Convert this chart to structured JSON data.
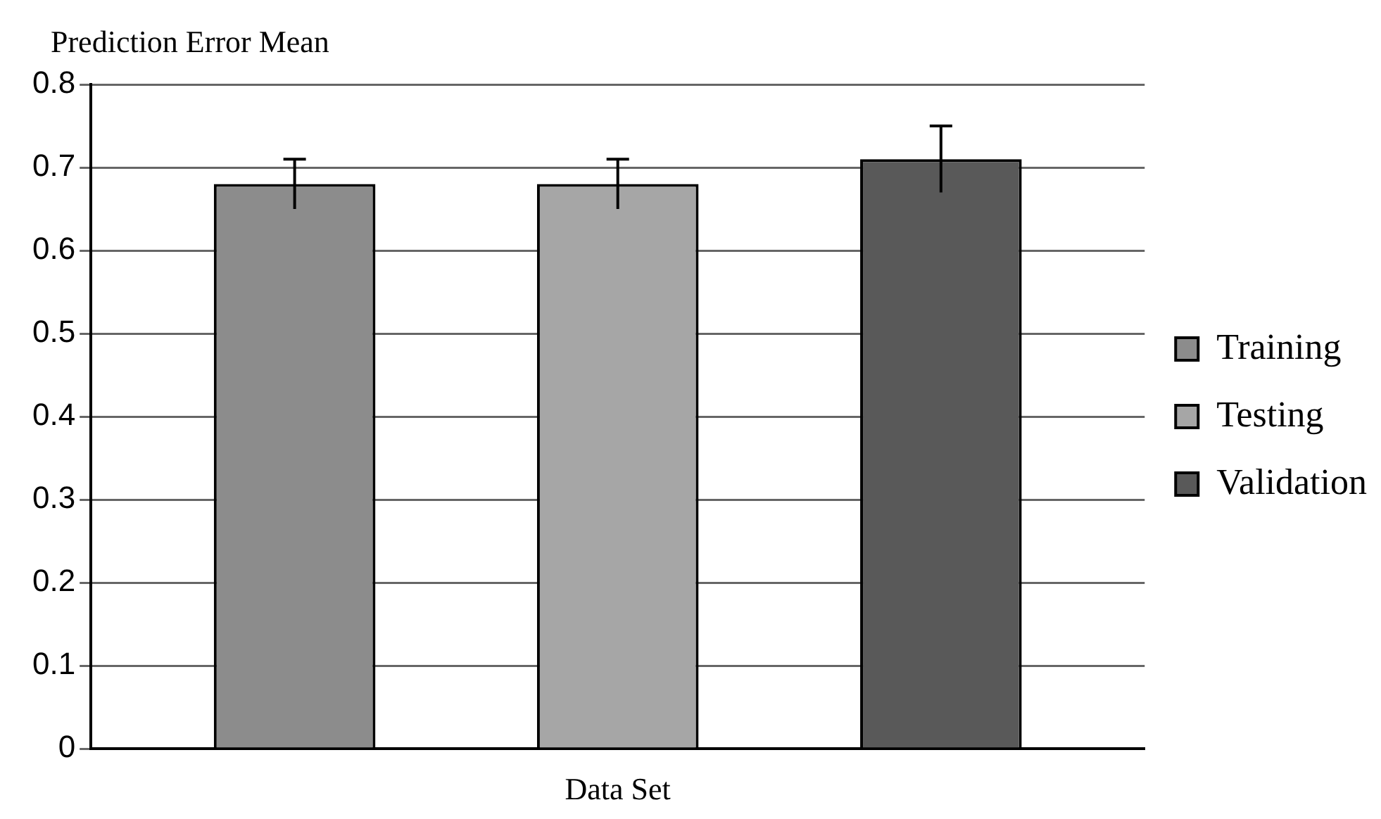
{
  "chart_data": {
    "type": "bar",
    "title": "Prediction Error Mean",
    "xlabel": "Data Set",
    "categories": [
      null
    ],
    "series": [
      {
        "name": "Training",
        "color": "#8c8c8c",
        "values": [
          0.68
        ],
        "errors": [
          0.03
        ]
      },
      {
        "name": "Testing",
        "color": "#a6a6a6",
        "values": [
          0.68
        ],
        "errors": [
          0.03
        ]
      },
      {
        "name": "Validation",
        "color": "#595959",
        "values": [
          0.71
        ],
        "errors": [
          0.04
        ]
      }
    ],
    "ylim": [
      0,
      0.8
    ],
    "yticks": [
      0,
      0.1,
      0.2,
      0.3,
      0.4,
      0.5,
      0.6,
      0.7,
      0.8
    ],
    "grid": "y",
    "legend": "right",
    "tick_labels": "y"
  }
}
